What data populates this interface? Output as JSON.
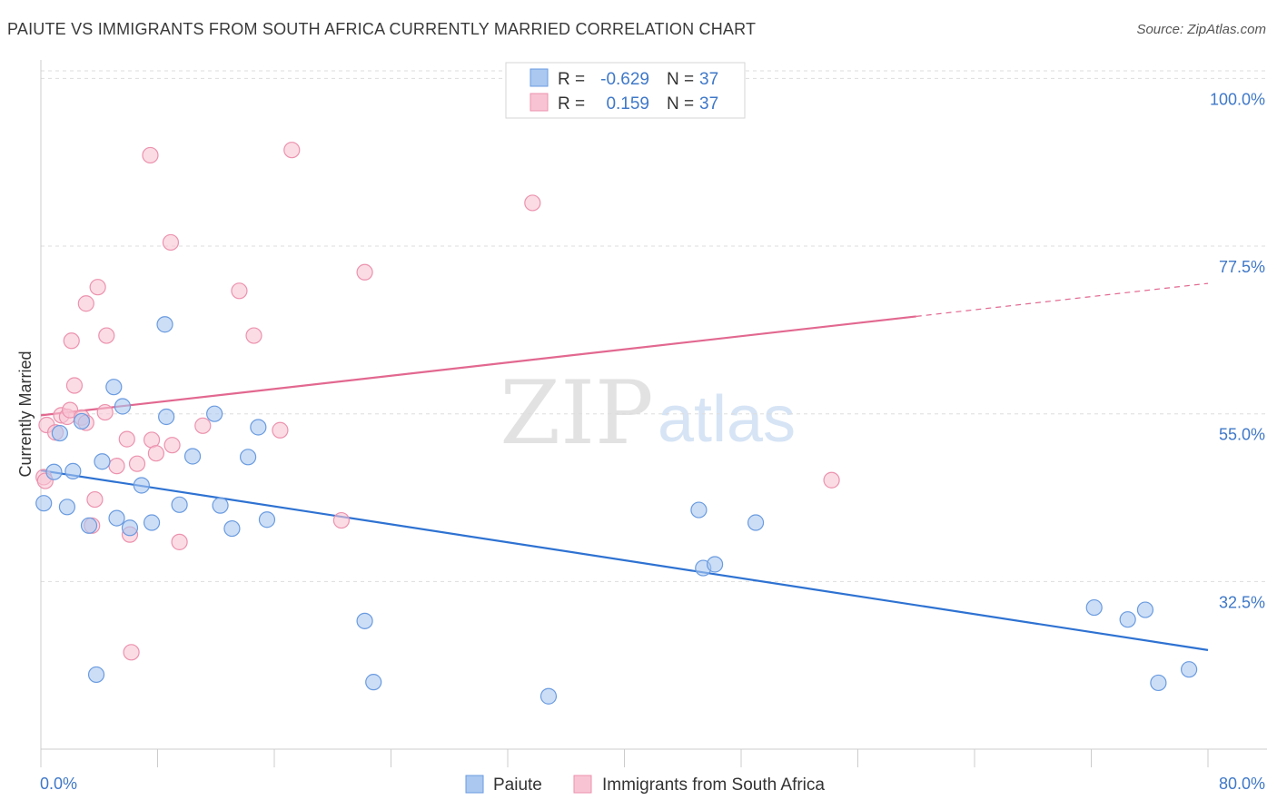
{
  "header": {
    "title": "PAIUTE VS IMMIGRANTS FROM SOUTH AFRICA CURRENTLY MARRIED CORRELATION CHART",
    "source": "Source: ZipAtlas.com"
  },
  "watermark": {
    "zip": "ZIP",
    "atlas": "atlas"
  },
  "legend": {
    "r_label": "R =",
    "n_label": "N =",
    "rows": [
      {
        "r": "-0.629",
        "n": "37"
      },
      {
        "r": "0.159",
        "n": "37"
      }
    ]
  },
  "chart_data": {
    "type": "scatter",
    "title": "PAIUTE VS IMMIGRANTS FROM SOUTH AFRICA CURRENTLY MARRIED CORRELATION CHART",
    "xlabel": "",
    "ylabel": "Currently Married",
    "xlim": [
      0,
      80
    ],
    "ylim": [
      10,
      102
    ],
    "x_tick_labels": [
      "0.0%",
      "80.0%"
    ],
    "y_ticks": [
      32.5,
      55.0,
      77.5,
      100.0
    ],
    "y_tick_labels": [
      "32.5%",
      "55.0%",
      "77.5%",
      "100.0%"
    ],
    "grid": true,
    "legend_position": "top-center",
    "colors": {
      "paiute_fill": "#aac8f0",
      "paiute_stroke": "#6a9be0",
      "paiute_line": "#2e72d2",
      "sa_fill": "#f8c4d4",
      "sa_stroke": "#ec92ae",
      "sa_line": "#e26890",
      "tick_color": "#3f78c8",
      "grid": "#dddddd"
    },
    "series": [
      {
        "name": "Paiute",
        "points": [
          [
            0.2,
            43.0
          ],
          [
            0.9,
            47.2
          ],
          [
            1.3,
            52.4
          ],
          [
            1.8,
            42.5
          ],
          [
            2.2,
            47.3
          ],
          [
            2.8,
            54.0
          ],
          [
            3.3,
            40.0
          ],
          [
            3.8,
            20.0
          ],
          [
            4.2,
            48.6
          ],
          [
            5.0,
            58.6
          ],
          [
            5.2,
            41.0
          ],
          [
            5.6,
            56.0
          ],
          [
            6.1,
            39.7
          ],
          [
            6.9,
            45.4
          ],
          [
            7.6,
            40.4
          ],
          [
            8.6,
            54.6
          ],
          [
            8.5,
            67.0
          ],
          [
            9.5,
            42.8
          ],
          [
            10.4,
            49.3
          ],
          [
            11.9,
            55.0
          ],
          [
            12.3,
            42.7
          ],
          [
            13.1,
            39.6
          ],
          [
            14.2,
            49.2
          ],
          [
            14.9,
            53.2
          ],
          [
            15.5,
            40.8
          ],
          [
            22.2,
            27.2
          ],
          [
            22.8,
            19.0
          ],
          [
            34.8,
            17.1
          ],
          [
            45.1,
            42.1
          ],
          [
            45.4,
            34.3
          ],
          [
            46.2,
            34.8
          ],
          [
            49.0,
            40.4
          ],
          [
            72.2,
            29.0
          ],
          [
            74.5,
            27.4
          ],
          [
            75.7,
            28.7
          ],
          [
            76.6,
            18.9
          ],
          [
            78.7,
            20.7
          ]
        ]
      },
      {
        "name": "Immigrants from South Africa",
        "points": [
          [
            0.2,
            46.5
          ],
          [
            0.4,
            53.5
          ],
          [
            1.0,
            52.5
          ],
          [
            1.4,
            54.8
          ],
          [
            1.8,
            54.6
          ],
          [
            2.0,
            55.5
          ],
          [
            2.1,
            64.8
          ],
          [
            2.3,
            58.8
          ],
          [
            2.8,
            54.5
          ],
          [
            3.1,
            53.8
          ],
          [
            3.1,
            69.8
          ],
          [
            3.5,
            40.0
          ],
          [
            3.7,
            43.5
          ],
          [
            3.9,
            72.0
          ],
          [
            4.4,
            55.2
          ],
          [
            4.5,
            65.5
          ],
          [
            5.2,
            48.0
          ],
          [
            5.9,
            51.6
          ],
          [
            6.1,
            38.8
          ],
          [
            6.2,
            23.0
          ],
          [
            6.6,
            48.3
          ],
          [
            7.5,
            89.7
          ],
          [
            7.6,
            51.5
          ],
          [
            7.9,
            49.7
          ],
          [
            8.9,
            78.0
          ],
          [
            9.0,
            50.8
          ],
          [
            9.5,
            37.8
          ],
          [
            11.1,
            53.4
          ],
          [
            13.6,
            71.5
          ],
          [
            14.6,
            65.5
          ],
          [
            16.4,
            52.8
          ],
          [
            17.2,
            90.4
          ],
          [
            20.6,
            40.7
          ],
          [
            22.2,
            74.0
          ],
          [
            33.7,
            83.3
          ],
          [
            54.2,
            46.1
          ],
          [
            0.3,
            46.0
          ]
        ]
      }
    ],
    "trendlines": [
      {
        "series": "Paiute",
        "x0": 0,
        "y0": 47.4,
        "x1": 80,
        "y1": 23.3,
        "solid_until": 80
      },
      {
        "series": "Immigrants from South Africa",
        "x0": 0,
        "y0": 54.8,
        "x1": 80,
        "y1": 72.5,
        "solid_until": 60
      }
    ]
  },
  "bottom_legend": {
    "items": [
      "Paiute",
      "Immigrants from South Africa"
    ]
  }
}
